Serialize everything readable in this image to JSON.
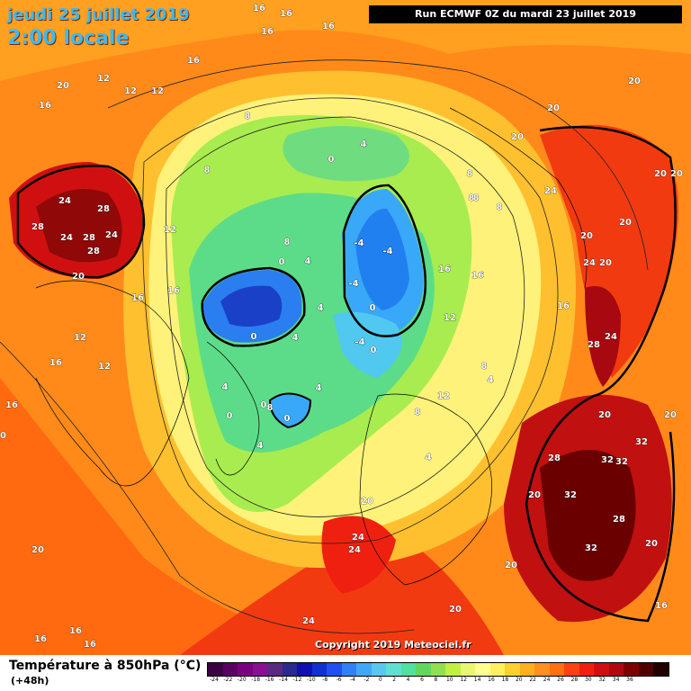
{
  "header": {
    "date_line": "jeudi 25 juillet 2019",
    "time_line": "2:00 locale",
    "run_info": "Run ECMWF 0Z du mardi 23 juillet 2019"
  },
  "copyright": "Copyright 2019 Meteociel.fr",
  "footer": {
    "variable_label": "Température à 850hPa (°C)",
    "lead_time": "(+48h)"
  },
  "legend": {
    "ticks": [
      "-24",
      "-22",
      "-20",
      "-18",
      "-16",
      "-14",
      "-12",
      "-10",
      "-8",
      "-6",
      "-4",
      "-2",
      "0",
      "2",
      "4",
      "6",
      "8",
      "10",
      "12",
      "14",
      "16",
      "18",
      "20",
      "22",
      "24",
      "26",
      "28",
      "30",
      "32",
      "34",
      "36"
    ],
    "colors": [
      "#3a0040",
      "#5a0060",
      "#7a0080",
      "#8a1090",
      "#5a2a80",
      "#2a2a90",
      "#1010b0",
      "#1030d0",
      "#2050f0",
      "#3080f8",
      "#40a8f8",
      "#58c8f0",
      "#60e0d0",
      "#50e0a0",
      "#60d860",
      "#90e050",
      "#c0f040",
      "#e8f870",
      "#ffff90",
      "#fff060",
      "#ffd030",
      "#ffb020",
      "#ff9020",
      "#ff7010",
      "#ff4010",
      "#f02010",
      "#d01010",
      "#b00810",
      "#800000",
      "#500000",
      "#200000"
    ]
  },
  "map_labels": [
    {
      "text": "16"
    },
    {
      "text": "16"
    },
    {
      "text": "16"
    },
    {
      "text": "16"
    },
    {
      "text": "16"
    },
    {
      "text": "12"
    },
    {
      "text": "12"
    },
    {
      "text": "12"
    },
    {
      "text": "20"
    },
    {
      "text": "16"
    },
    {
      "text": "20"
    },
    {
      "text": "20"
    },
    {
      "text": "20"
    },
    {
      "text": "20"
    },
    {
      "text": "20"
    },
    {
      "text": "24"
    },
    {
      "text": "20"
    },
    {
      "text": "20"
    },
    {
      "text": "24"
    },
    {
      "text": "20"
    },
    {
      "text": "28"
    },
    {
      "text": "24"
    },
    {
      "text": "20"
    },
    {
      "text": "20"
    },
    {
      "text": "32"
    },
    {
      "text": "28"
    },
    {
      "text": "32"
    },
    {
      "text": "32"
    },
    {
      "text": "32"
    },
    {
      "text": "28"
    },
    {
      "text": "32"
    },
    {
      "text": "20"
    },
    {
      "text": "20"
    },
    {
      "text": "20"
    },
    {
      "text": "16"
    },
    {
      "text": "20"
    },
    {
      "text": "24"
    },
    {
      "text": "24"
    },
    {
      "text": "20"
    },
    {
      "text": "24"
    },
    {
      "text": "16"
    },
    {
      "text": "16"
    },
    {
      "text": "16"
    },
    {
      "text": "20"
    },
    {
      "text": "24"
    },
    {
      "text": "28"
    },
    {
      "text": "28"
    },
    {
      "text": "24"
    },
    {
      "text": "28"
    },
    {
      "text": "24"
    },
    {
      "text": "28"
    },
    {
      "text": "20"
    },
    {
      "text": "12"
    },
    {
      "text": "16"
    },
    {
      "text": "16"
    },
    {
      "text": "12"
    },
    {
      "text": "16"
    },
    {
      "text": "12"
    },
    {
      "text": "8"
    },
    {
      "text": "8"
    },
    {
      "text": "8"
    },
    {
      "text": "0"
    },
    {
      "text": "4"
    },
    {
      "text": "8"
    },
    {
      "text": "4"
    },
    {
      "text": "0"
    },
    {
      "text": "-4"
    },
    {
      "text": "-4"
    },
    {
      "text": "-4"
    },
    {
      "text": "0"
    },
    {
      "text": "-4"
    },
    {
      "text": "4"
    },
    {
      "text": "0"
    },
    {
      "text": "4"
    },
    {
      "text": "0"
    },
    {
      "text": "0"
    },
    {
      "text": "4"
    },
    {
      "text": "0"
    },
    {
      "text": "4"
    },
    {
      "text": "0"
    },
    {
      "text": "4"
    },
    {
      "text": "8"
    },
    {
      "text": "16"
    },
    {
      "text": "12"
    },
    {
      "text": "16"
    },
    {
      "text": "16"
    },
    {
      "text": "8"
    },
    {
      "text": "4"
    },
    {
      "text": "12"
    },
    {
      "text": "8"
    },
    {
      "text": "8"
    },
    {
      "text": "8"
    },
    {
      "text": "4"
    },
    {
      "text": "8"
    },
    {
      "text": "20"
    },
    {
      "text": "16"
    },
    {
      "text": "-4"
    },
    {
      "text": "0"
    },
    {
      "text": "-4"
    },
    {
      "text": "4"
    }
  ]
}
